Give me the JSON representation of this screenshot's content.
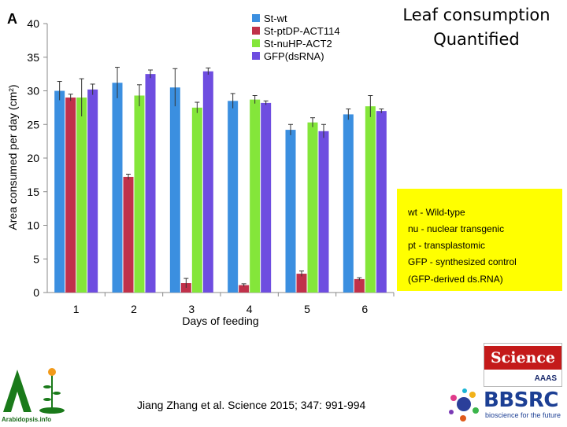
{
  "slide": {
    "title_line1": "Leaf consumption",
    "title_line2": "Quantified",
    "citation": "Jiang Zhang et al. Science 2015; 347: 991-994"
  },
  "notes": {
    "lines": [
      "wt - Wild-type",
      "nu - nuclear transgenic",
      "pt - transplastomic",
      "GFP - synthesized control",
      "(GFP-derived ds.RNA)"
    ]
  },
  "logos": {
    "science_word": "Science",
    "science_sub": "AAAS",
    "bbsrc_name": "BBSRC",
    "bbsrc_tagline": "bioscience for the future",
    "arabidopsis_label": "Arabidopsis.info"
  },
  "chart_data": {
    "type": "bar",
    "panel_label": "A",
    "xlabel": "Days of feeding",
    "ylabel": "Area consumed per day (cm²)",
    "ylim": [
      0,
      40
    ],
    "yticks": [
      0,
      5,
      10,
      15,
      20,
      25,
      30,
      35,
      40
    ],
    "categories": [
      "1",
      "2",
      "3",
      "4",
      "5",
      "6"
    ],
    "legend_position": "top-right",
    "grid": false,
    "series": [
      {
        "name": "St-wt",
        "color": "#3b8fe0",
        "values": [
          30.0,
          31.2,
          30.5,
          28.5,
          24.2,
          26.5
        ],
        "errors": [
          1.4,
          2.3,
          2.8,
          1.1,
          0.8,
          0.8
        ]
      },
      {
        "name": "St-ptDP-ACT114",
        "color": "#c0314a",
        "values": [
          29.0,
          17.2,
          1.4,
          1.1,
          2.8,
          2.0
        ],
        "errors": [
          0.5,
          0.4,
          0.7,
          0.2,
          0.4,
          0.2
        ]
      },
      {
        "name": "St-nuHP-ACT2",
        "color": "#84e63a",
        "values": [
          29.0,
          29.3,
          27.5,
          28.7,
          25.3,
          27.7
        ],
        "errors": [
          2.8,
          1.6,
          0.8,
          0.6,
          0.7,
          1.6
        ]
      },
      {
        "name": "GFP(dsRNA)",
        "color": "#6e4de0",
        "values": [
          30.2,
          32.5,
          32.9,
          28.2,
          24.0,
          27.0
        ],
        "errors": [
          0.8,
          0.6,
          0.5,
          0.3,
          1.0,
          0.3
        ]
      }
    ]
  }
}
